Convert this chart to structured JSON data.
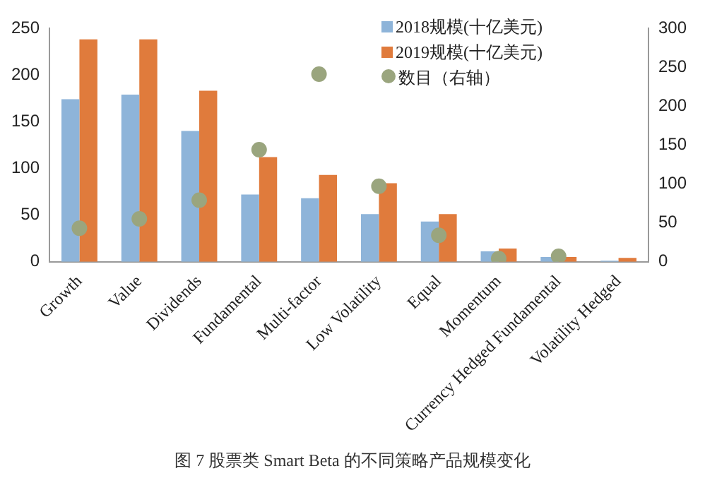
{
  "chart_data": {
    "type": "bar",
    "categories": [
      "Growth",
      "Value",
      "Dividends",
      "Fundamental",
      "Multi-factor",
      "Low Volatility",
      "Equal",
      "Momentum",
      "Currency Hedged Fundamental",
      "Volatility Hedged"
    ],
    "series": [
      {
        "name": "2018规模(十亿美元)",
        "color": "#8eb4d9",
        "values": [
          174,
          179,
          140,
          72,
          68,
          51,
          43,
          11,
          5,
          1
        ]
      },
      {
        "name": "2019规模(十亿美元)",
        "color": "#e07b3c",
        "values": [
          238,
          238,
          183,
          112,
          93,
          84,
          51,
          14,
          5,
          4
        ]
      },
      {
        "name": "数目（右轴）",
        "type": "scatter",
        "axis": "y2",
        "color": "#9aa57e",
        "values": [
          43,
          55,
          79,
          144,
          241,
          97,
          34,
          4,
          7,
          null
        ]
      }
    ],
    "ylim": [
      0,
      250
    ],
    "yticks": [
      0,
      50,
      100,
      150,
      200,
      250
    ],
    "y2lim": [
      0,
      300
    ],
    "y2ticks": [
      0,
      50,
      100,
      150,
      200,
      250,
      300
    ],
    "grid": false,
    "legend": "top right",
    "marker": "circle",
    "annotations": [
      "图 7 股票类 Smart Beta 的不同策略产品规模变化"
    ]
  }
}
